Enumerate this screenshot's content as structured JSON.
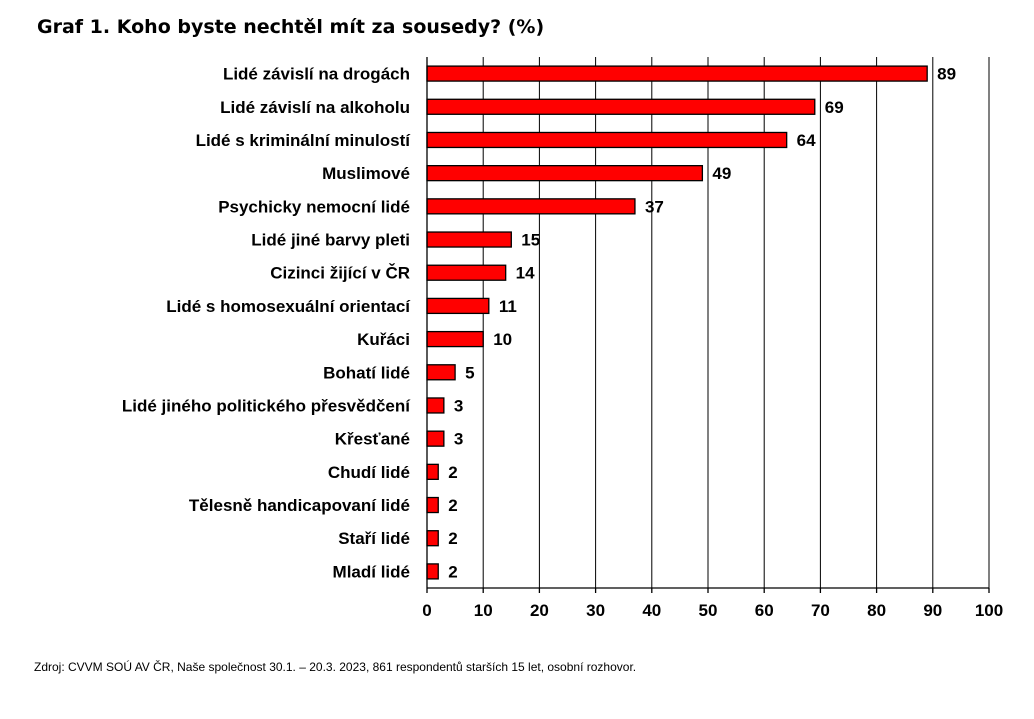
{
  "title": "Graf 1. Koho byste nechtěl mít za sousedy? (%)",
  "source": "Zdroj: CVVM SOÚ AV ČR, Naše společnost 30.1. – 20.3. 2023, 861 respondentů starších 15 let, osobní rozhovor.",
  "colors": {
    "bar": "#ff0000",
    "bar_border": "#000000",
    "grid": "#000000"
  },
  "chart_data": {
    "type": "bar",
    "orientation": "horizontal",
    "title": "Graf 1. Koho byste nechtěl mít za sousedy? (%)",
    "xlabel": "",
    "ylabel": "",
    "xlim": [
      0,
      100
    ],
    "ticks": [
      0,
      10,
      20,
      30,
      40,
      50,
      60,
      70,
      80,
      90,
      100
    ],
    "grid": true,
    "legend": "none",
    "categories": [
      "Lidé závislí na drogách",
      "Lidé závislí na alkoholu",
      "Lidé s kriminální minulostí",
      "Muslimové",
      "Psychicky nemocní lidé",
      "Lidé jiné barvy pleti",
      "Cizinci žijící v ČR",
      "Lidé s homosexuální orientací",
      "Kuřáci",
      "Bohatí lidé",
      "Lidé jiného politického přesvědčení",
      "Křesťané",
      "Chudí lidé",
      "Tělesně handicapovaní lidé",
      "Staří lidé",
      "Mladí lidé"
    ],
    "values": [
      89,
      69,
      64,
      49,
      37,
      15,
      14,
      11,
      10,
      5,
      3,
      3,
      2,
      2,
      2,
      2
    ]
  }
}
